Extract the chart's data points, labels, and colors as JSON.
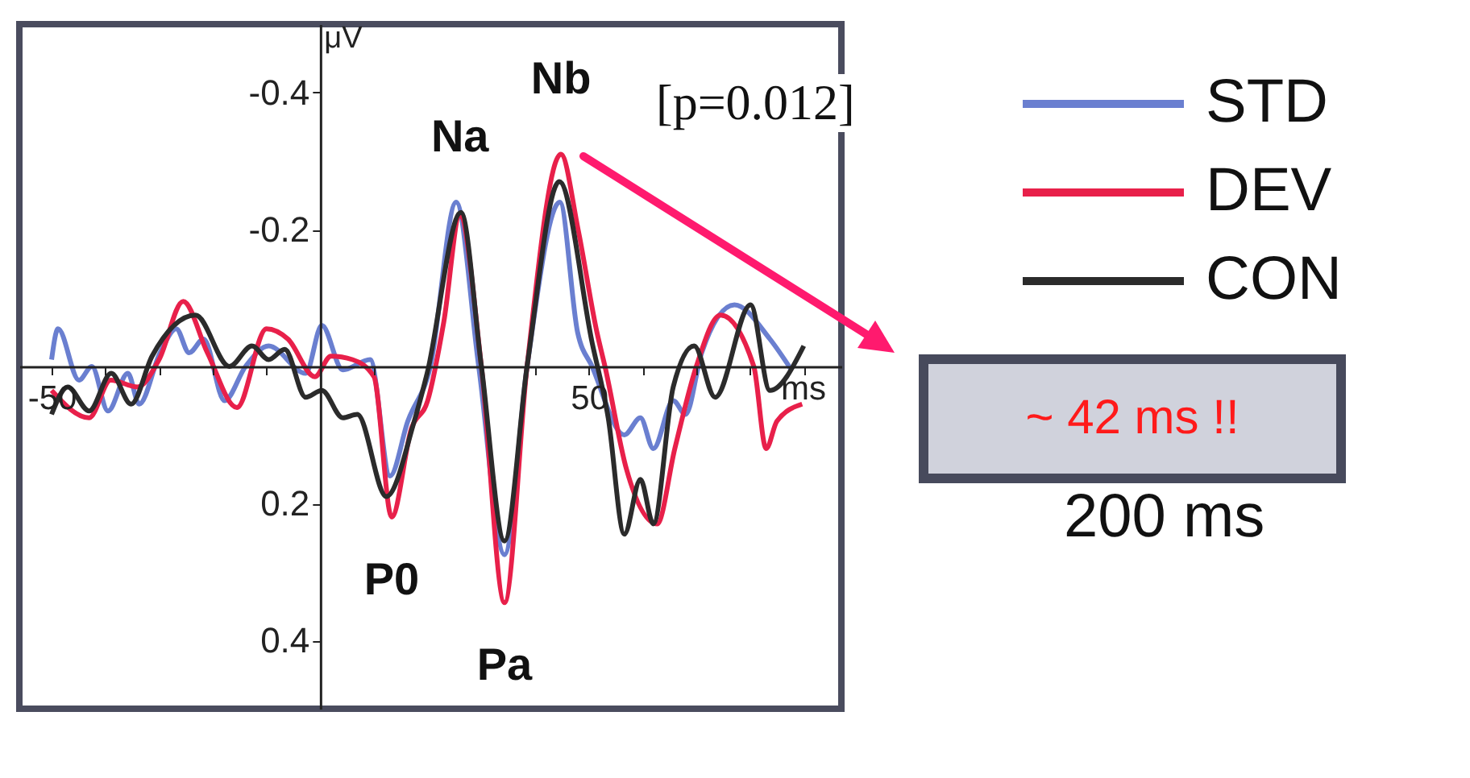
{
  "chart_data": {
    "type": "line",
    "xlabel": "ms",
    "ylabel": "μV",
    "xlim": [
      -56,
      97
    ],
    "ylim": [
      0.5,
      -0.5
    ],
    "xticks": [
      {
        "value": -50,
        "label": "-50"
      },
      {
        "value": -40,
        "label": null
      },
      {
        "value": -30,
        "label": null
      },
      {
        "value": -20,
        "label": null
      },
      {
        "value": -10,
        "label": null
      },
      {
        "value": 10,
        "label": null
      },
      {
        "value": 20,
        "label": null
      },
      {
        "value": 30,
        "label": null
      },
      {
        "value": 40,
        "label": null
      },
      {
        "value": 50,
        "label": "50"
      },
      {
        "value": 60,
        "label": null
      },
      {
        "value": 70,
        "label": null
      },
      {
        "value": 80,
        "label": null
      },
      {
        "value": 90,
        "label": null
      }
    ],
    "yticks": [
      {
        "value": -0.4,
        "label": "-0.4"
      },
      {
        "value": -0.2,
        "label": "-0.2"
      },
      {
        "value": 0.2,
        "label": "0.2"
      },
      {
        "value": 0.4,
        "label": "0.4"
      }
    ],
    "grid": false,
    "legend": "top right",
    "marker": "none",
    "line_style": "solid",
    "series": [
      {
        "name": "STD",
        "color": "#6a7fd0",
        "x": [
          -50,
          -48.8,
          -44.9,
          -42.5,
          -39.5,
          -35.8,
          -33.7,
          -29.8,
          -26.8,
          -24.4,
          -21.7,
          -17.8,
          -13.9,
          -9.6,
          -2.7,
          0.3,
          4.2,
          9.3,
          13,
          16.3,
          20.5,
          25.3,
          29.5,
          34.3,
          38.5,
          44.6,
          47.9,
          50.6,
          56.6,
          59.6,
          62,
          65.7,
          68,
          71,
          77.1,
          83.7,
          87.7
        ],
        "values": [
          -0.01,
          -0.055,
          0.02,
          0,
          0.065,
          0.01,
          0.055,
          -0.02,
          -0.055,
          -0.02,
          -0.04,
          0.05,
          0,
          -0.03,
          0.01,
          -0.06,
          0.005,
          -0.01,
          0.16,
          0.08,
          0,
          -0.24,
          0,
          0.275,
          0,
          -0.24,
          -0.05,
          0,
          0.1,
          0.075,
          0.12,
          0.05,
          0.07,
          -0.02,
          -0.09,
          -0.04,
          0.005
        ]
      },
      {
        "name": "DEV",
        "color": "#e8204a",
        "x": [
          -50,
          -43,
          -39,
          -34,
          -30,
          -25.5,
          -21,
          -15.5,
          -10,
          -6,
          -1,
          2,
          6,
          10,
          13.3,
          17,
          20,
          23,
          26,
          30,
          34.3,
          38.5,
          44.8,
          48,
          51.5,
          53,
          57,
          62.7,
          66,
          70,
          74.5,
          80.7,
          83,
          85,
          89.7
        ],
        "values": [
          0.035,
          0.075,
          0.02,
          0.03,
          -0.01,
          -0.095,
          -0.02,
          0.06,
          -0.055,
          -0.04,
          0.015,
          -0.015,
          -0.01,
          0.015,
          0.22,
          0.09,
          0.05,
          -0.065,
          -0.22,
          0,
          0.345,
          0,
          -0.31,
          -0.2,
          -0.05,
          0,
          0.15,
          0.23,
          0.12,
          0,
          -0.075,
          0,
          0.12,
          0.08,
          0.055
        ]
      },
      {
        "name": "CON",
        "color": "#2b2b2b",
        "x": [
          -50,
          -47,
          -43,
          -38.9,
          -35.2,
          -31.3,
          -23.2,
          -16.9,
          -12.7,
          -9.6,
          -6.6,
          -2.7,
          0.3,
          4.2,
          6.9,
          12.3,
          17.5,
          19.9,
          26.2,
          30,
          34.3,
          38.5,
          44.5,
          50.6,
          53.6,
          56.6,
          59.6,
          62,
          65.7,
          69.6,
          73.5,
          80.1,
          83.7,
          90
        ],
        "values": [
          0.07,
          0.03,
          0.065,
          0.01,
          0.055,
          -0.015,
          -0.075,
          0,
          -0.03,
          -0.01,
          -0.025,
          0.045,
          0.035,
          0.075,
          0.07,
          0.19,
          0.08,
          0.01,
          -0.225,
          0,
          0.255,
          0,
          -0.27,
          -0.035,
          0.075,
          0.245,
          0.165,
          0.23,
          0.03,
          -0.03,
          0.045,
          -0.09,
          0.035,
          -0.03
        ]
      }
    ],
    "annotations": [
      {
        "text": "Na",
        "x": 26,
        "y": -0.225
      },
      {
        "text": "Nb",
        "x": 44.8,
        "y": -0.31
      },
      {
        "text": "P0",
        "x": 13.3,
        "y": 0.22
      },
      {
        "text": "Pa",
        "x": 34.3,
        "y": 0.345
      },
      "[p=0.012]",
      "~ 42 ms !!",
      "200 ms"
    ]
  }
}
